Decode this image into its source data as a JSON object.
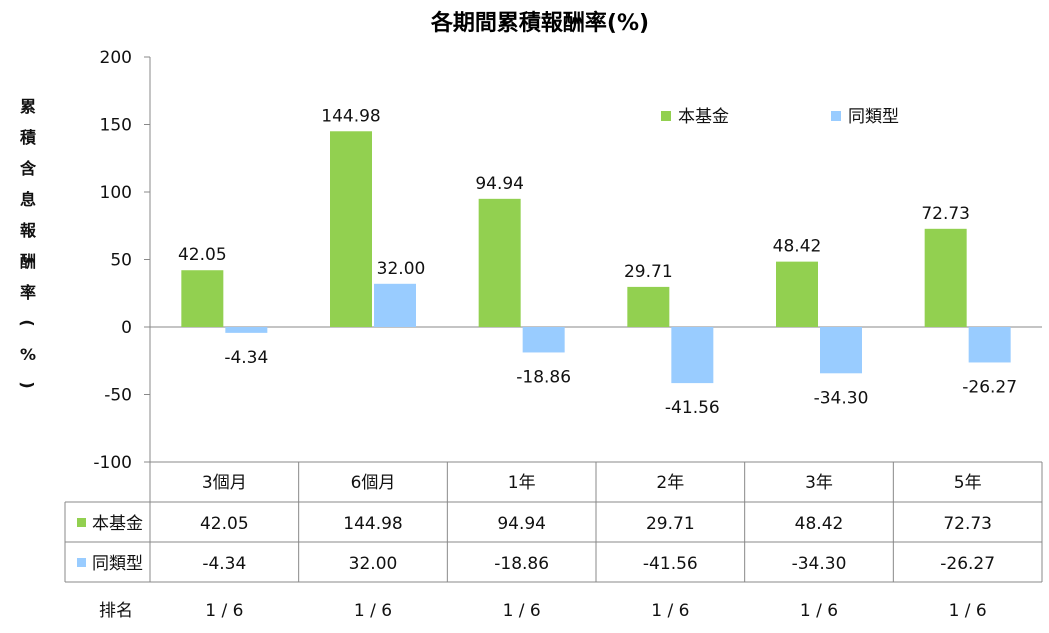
{
  "chart_data": {
    "type": "bar",
    "title": "各期間累積報酬率(%)",
    "ylabel": "累積含息報酬率(%)",
    "ylim": [
      -100,
      200
    ],
    "yticks": [
      200,
      150,
      100,
      50,
      0,
      -50,
      -100
    ],
    "categories": [
      "3個月",
      "6個月",
      "1年",
      "2年",
      "3年",
      "5年"
    ],
    "series": [
      {
        "name": "本基金",
        "color": "#92d050",
        "values": [
          42.05,
          144.98,
          94.94,
          29.71,
          48.42,
          72.73
        ],
        "labels": [
          "42.05",
          "144.98",
          "94.94",
          "29.71",
          "48.42",
          "72.73"
        ]
      },
      {
        "name": "同類型",
        "color": "#99ccff",
        "values": [
          -4.34,
          32.0,
          -18.86,
          -41.56,
          -34.3,
          -26.27
        ],
        "labels": [
          "-4.34",
          "32.00",
          "-18.86",
          "-41.56",
          "-34.30",
          "-26.27"
        ]
      }
    ],
    "legend_position": "top-right",
    "grid": false
  },
  "table": {
    "rank_label": "排名",
    "ranks": [
      "1 / 6",
      "1 / 6",
      "1 / 6",
      "1 / 6",
      "1 / 6",
      "1 / 6"
    ]
  }
}
